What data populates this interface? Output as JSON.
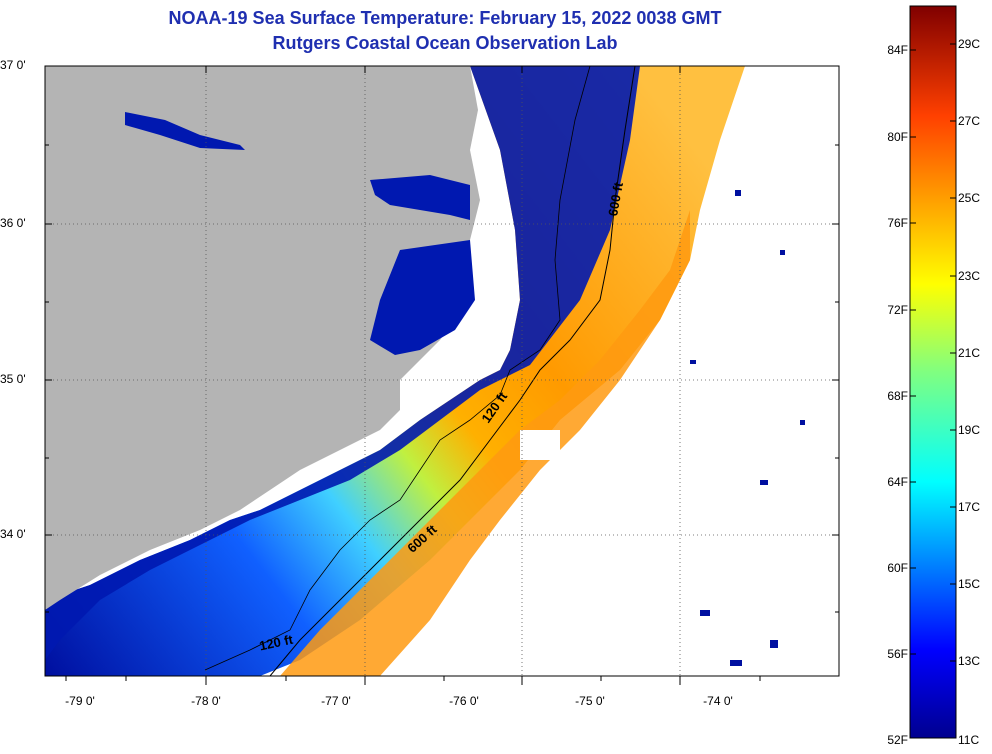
{
  "title": "NOAA-19 Sea Surface Temperature:  February 15, 2022 0038 GMT",
  "subtitle": "Rutgers Coastal Ocean Observation Lab",
  "lat_labels": [
    "37 0'",
    "36 0'",
    "35 0'",
    "34 0'"
  ],
  "lon_labels": [
    "-79 0'",
    "-78 0'",
    "-77 0'",
    "-76 0'",
    "-75 0'",
    "-74 0'"
  ],
  "isobath_labels": {
    "upper_600": "600 ft",
    "mid_120": "120 ft",
    "mid_600": "600 ft",
    "lower_120": "120 ft"
  },
  "colorbar": {
    "fahrenheit_labels": [
      "84F",
      "80F",
      "76F",
      "72F",
      "68F",
      "64F",
      "60F",
      "56F",
      "52F"
    ],
    "celsius_labels": [
      "29C",
      "27C",
      "25C",
      "23C",
      "21C",
      "19C",
      "17C",
      "15C",
      "13C",
      "11C"
    ]
  },
  "colors": {
    "land": "#b4b4b4",
    "title": "#1f2fb0",
    "cold": "#0010a0",
    "warm": "#ff9000"
  }
}
